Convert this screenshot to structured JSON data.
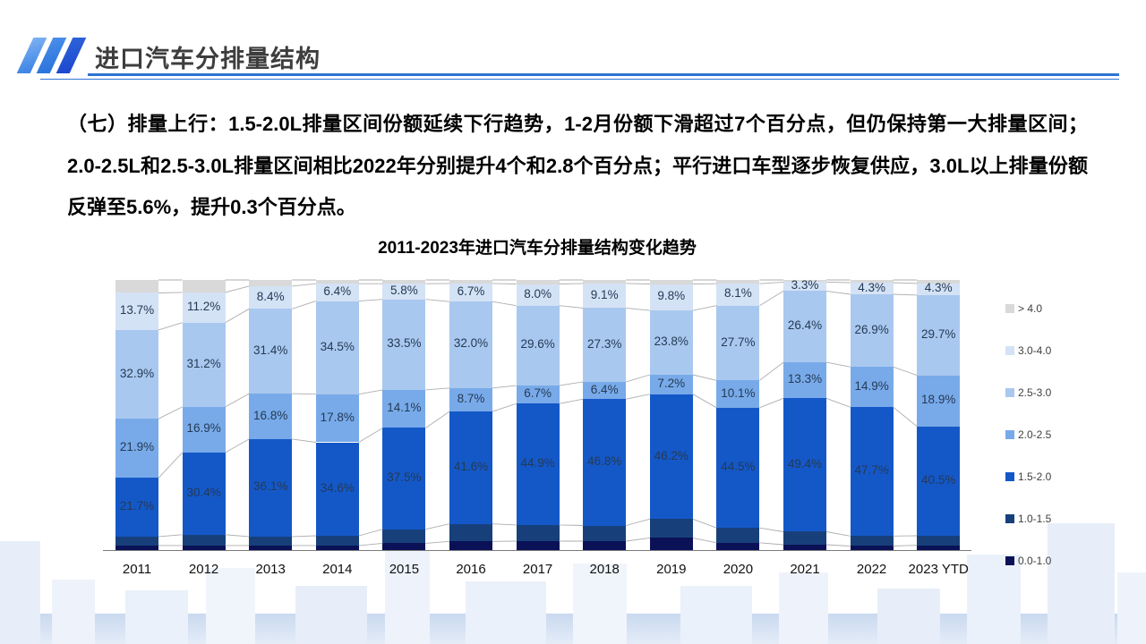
{
  "header": {
    "title": "进口汽车分排量结构"
  },
  "intro": {
    "text": "（七）排量上行：1.5-2.0L排量区间份额延续下行趋势，1-2月份额下滑超过7个百分点，但仍保持第一大排量区间；2.0-2.5L和2.5-3.0L排量区间相比2022年分别提升4个和2.8个百分点；平行进口车型逐步恢复供应，3.0L以上排量份额反弹至5.6%，提升0.3个百分点。"
  },
  "chart_data": {
    "type": "bar",
    "stacked": true,
    "title": "2011-2023年进口汽车分排量结构变化趋势",
    "categories": [
      "2011",
      "2012",
      "2013",
      "2014",
      "2015",
      "2016",
      "2017",
      "2018",
      "2019",
      "2020",
      "2021",
      "2022",
      "2023 YTD"
    ],
    "series": [
      {
        "name": "0.0-1.0",
        "color": "#0a1156",
        "labeled": false,
        "values": [
          1.7,
          1.7,
          1.7,
          1.7,
          2.5,
          3.2,
          3.3,
          3.3,
          4.5,
          2.7,
          2.0,
          1.5,
          1.8
        ]
      },
      {
        "name": "1.0-1.5",
        "color": "#17407b",
        "labeled": false,
        "values": [
          3.3,
          4.0,
          3.3,
          3.6,
          5.2,
          6.5,
          6.0,
          5.8,
          7.0,
          5.5,
          4.8,
          3.7,
          3.5
        ]
      },
      {
        "name": "1.5-2.0",
        "color": "#1458c8",
        "labeled": true,
        "values": [
          21.7,
          30.4,
          36.1,
          34.6,
          37.5,
          41.6,
          44.9,
          46.8,
          46.2,
          44.5,
          49.4,
          47.7,
          40.5
        ]
      },
      {
        "name": "2.0-2.5",
        "color": "#78aae9",
        "labeled": true,
        "values": [
          21.9,
          16.9,
          16.8,
          17.8,
          14.1,
          8.7,
          6.7,
          6.4,
          7.2,
          10.1,
          13.3,
          14.9,
          18.9
        ]
      },
      {
        "name": "2.5-3.0",
        "color": "#a9c8ef",
        "labeled": true,
        "values": [
          32.9,
          31.2,
          31.4,
          34.5,
          33.5,
          32.0,
          29.6,
          27.3,
          23.8,
          27.7,
          26.4,
          26.9,
          29.7
        ]
      },
      {
        "name": "3.0-4.0",
        "color": "#d4e2f5",
        "labeled": true,
        "values": [
          13.7,
          11.2,
          8.4,
          6.4,
          5.8,
          6.7,
          8.0,
          9.1,
          9.8,
          8.1,
          3.3,
          4.3,
          4.3
        ]
      },
      {
        "name": "> 4.0",
        "color": "#d9d9d9",
        "labeled": false,
        "values": [
          4.8,
          4.6,
          2.3,
          1.4,
          1.4,
          1.3,
          1.5,
          1.3,
          1.5,
          1.4,
          0.8,
          1.0,
          1.3
        ]
      }
    ],
    "ylim": [
      0,
      100
    ],
    "grid": false,
    "legend_position": "right",
    "legend_order_top_to_bottom": [
      "> 4.0",
      "3.0-4.0",
      "2.5-3.0",
      "2.0-2.5",
      "1.5-2.0",
      "1.0-1.5",
      "0.0-1.0"
    ],
    "note": "values for '> 4.0', '1.0-1.5' and '0.0-1.0' are unlabeled in the chart and estimated from bar heights"
  },
  "colors": {
    "accent_rule": "#2e73d4",
    "axis": "#7a7a7a",
    "series_line": "#aeaeae",
    "label_text": "#243a55",
    "title_text": "#3d3d3d"
  }
}
